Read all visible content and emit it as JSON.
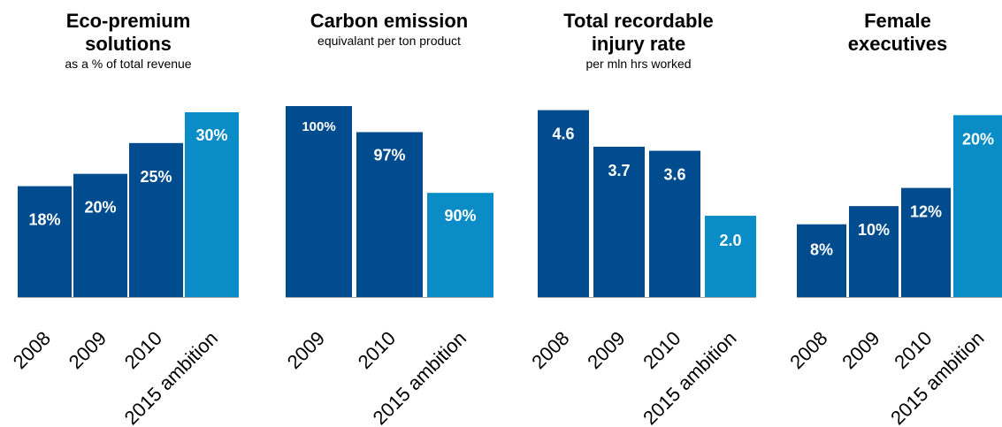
{
  "colors": {
    "bar_actual": "#004c8f",
    "bar_ambition": "#0a8cc6",
    "baseline": "#a6a6a6",
    "value_text": "#ffffff",
    "text": "#000000"
  },
  "chart_data": [
    {
      "type": "bar",
      "title_lines": [
        "Eco-premium",
        "solutions"
      ],
      "subtitle": "as a % of total revenue",
      "categories": [
        "2008",
        "2009",
        "2010",
        "2015 ambition"
      ],
      "values": [
        18,
        20,
        25,
        30
      ],
      "labels": [
        "18%",
        "20%",
        "25%",
        "30%"
      ],
      "ambition": [
        false,
        false,
        false,
        true
      ],
      "ylim": [
        0,
        31
      ]
    },
    {
      "type": "bar",
      "title_lines": [
        "Carbon emission"
      ],
      "subtitle": "equivalant per ton product",
      "categories": [
        "2009",
        "2010",
        "2015 ambition"
      ],
      "values": [
        100,
        97,
        90
      ],
      "labels": [
        "100%",
        "97%",
        "90%"
      ],
      "ambition": [
        false,
        false,
        true
      ],
      "ylim": [
        78,
        100
      ]
    },
    {
      "type": "bar",
      "title_lines": [
        "Total recordable",
        "injury rate"
      ],
      "subtitle": "per mln hrs worked",
      "categories": [
        "2008",
        "2009",
        "2010",
        "2015 ambition"
      ],
      "values": [
        4.6,
        3.7,
        3.6,
        2.0
      ],
      "labels": [
        "4.6",
        "3.7",
        "3.6",
        "2.0"
      ],
      "ambition": [
        false,
        false,
        false,
        true
      ],
      "ylim": [
        0,
        4.7
      ]
    },
    {
      "type": "bar",
      "title_lines": [
        "Female",
        "executives"
      ],
      "subtitle": "",
      "categories": [
        "2008",
        "2009",
        "2010",
        "2015 ambition"
      ],
      "values": [
        8,
        10,
        12,
        20
      ],
      "labels": [
        "8%",
        "10%",
        "12%",
        "20%"
      ],
      "ambition": [
        false,
        false,
        false,
        true
      ],
      "ylim": [
        0,
        21
      ]
    }
  ]
}
